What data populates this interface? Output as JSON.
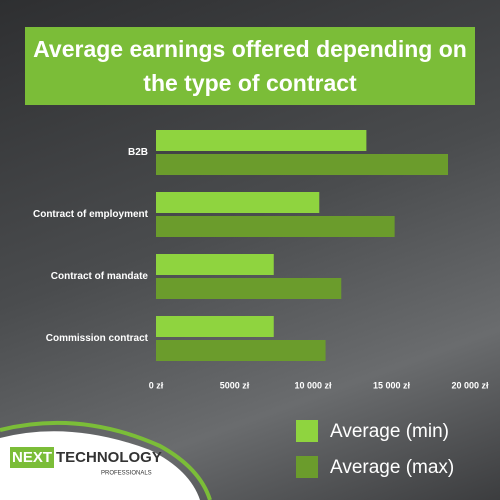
{
  "chart_data": {
    "type": "barh",
    "title": "Average earnings offered depending on the type of contract",
    "categories": [
      "B2B",
      "Contract of employment",
      "Contract of mandate",
      "Commission contract"
    ],
    "series": [
      {
        "name": "Average (min)",
        "color": "#8fd43f",
        "values": [
          13400,
          10400,
          7500,
          7500
        ]
      },
      {
        "name": "Average (max)",
        "color": "#6b9c2c",
        "values": [
          18600,
          15200,
          11800,
          10800
        ]
      }
    ],
    "xlim": [
      0,
      20000
    ],
    "xticks": [
      {
        "value": 0,
        "label": "0 zł"
      },
      {
        "value": 5000,
        "label": "5000 zł"
      },
      {
        "value": 10000,
        "label": "10 000 zł"
      },
      {
        "value": 15000,
        "label": "15 000 zł"
      },
      {
        "value": 20000,
        "label": "20 000 zł"
      }
    ],
    "grid": false
  },
  "logo": {
    "word1": "NEXT",
    "word2": "TECHNOLOGY",
    "subtitle": "PROFESSIONALS"
  }
}
